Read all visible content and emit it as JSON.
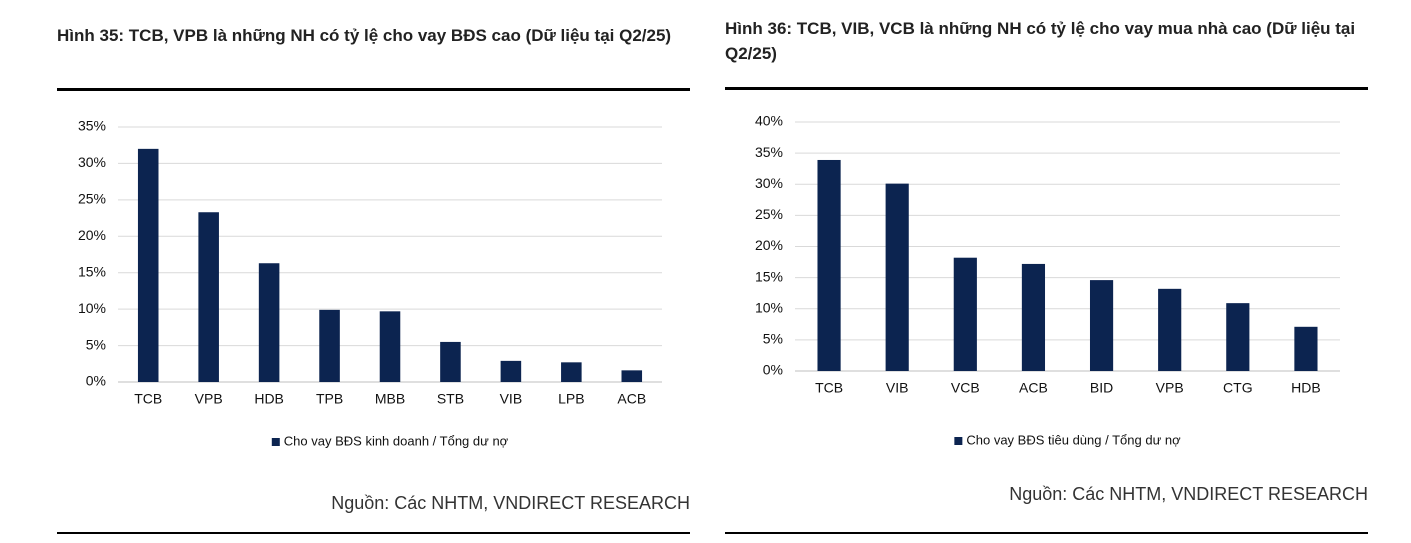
{
  "chart_data": [
    {
      "type": "bar",
      "title": "Hình 35: TCB, VPB là những NH có tỷ lệ cho vay BĐS cao (Dữ liệu tại Q2/25)",
      "categories": [
        "TCB",
        "VPB",
        "HDB",
        "TPB",
        "MBB",
        "STB",
        "VIB",
        "LPB",
        "ACB"
      ],
      "series": [
        {
          "name": "Cho vay BĐS kinh doanh / Tổng dư nợ",
          "color": "#0c2450",
          "values": [
            32.0,
            23.3,
            16.3,
            9.9,
            9.7,
            5.5,
            2.9,
            2.7,
            1.6
          ]
        }
      ],
      "ylim": [
        0,
        35
      ],
      "yticks": [
        {
          "value": 0,
          "label": "0%"
        },
        {
          "value": 5,
          "label": "5%"
        },
        {
          "value": 10,
          "label": "10%"
        },
        {
          "value": 15,
          "label": "15%"
        },
        {
          "value": 20,
          "label": "20%"
        },
        {
          "value": 25,
          "label": "25%"
        },
        {
          "value": 30,
          "label": "30%"
        },
        {
          "value": 35,
          "label": "35%"
        }
      ],
      "grid": true,
      "legend": "bottom",
      "source": "Nguồn: Các NHTM, VNDIRECT RESEARCH"
    },
    {
      "type": "bar",
      "title": "Hình 36: TCB, VIB, VCB là những NH có tỷ lệ cho vay mua nhà cao (Dữ liệu tại Q2/25)",
      "categories": [
        "TCB",
        "VIB",
        "VCB",
        "ACB",
        "BID",
        "VPB",
        "CTG",
        "HDB"
      ],
      "series": [
        {
          "name": "Cho vay BĐS tiêu dùng / Tổng dư nợ",
          "color": "#0c2450",
          "values": [
            33.9,
            30.1,
            18.2,
            17.2,
            14.6,
            13.2,
            10.9,
            7.1
          ]
        }
      ],
      "ylim": [
        0,
        40
      ],
      "yticks": [
        {
          "value": 0,
          "label": "0%"
        },
        {
          "value": 5,
          "label": "5%"
        },
        {
          "value": 10,
          "label": "10%"
        },
        {
          "value": 15,
          "label": "15%"
        },
        {
          "value": 20,
          "label": "20%"
        },
        {
          "value": 25,
          "label": "25%"
        },
        {
          "value": 30,
          "label": "30%"
        },
        {
          "value": 35,
          "label": "35%"
        },
        {
          "value": 40,
          "label": "40%"
        }
      ],
      "grid": true,
      "legend": "bottom",
      "source": "Nguồn: Các NHTM, VNDIRECT RESEARCH"
    }
  ]
}
